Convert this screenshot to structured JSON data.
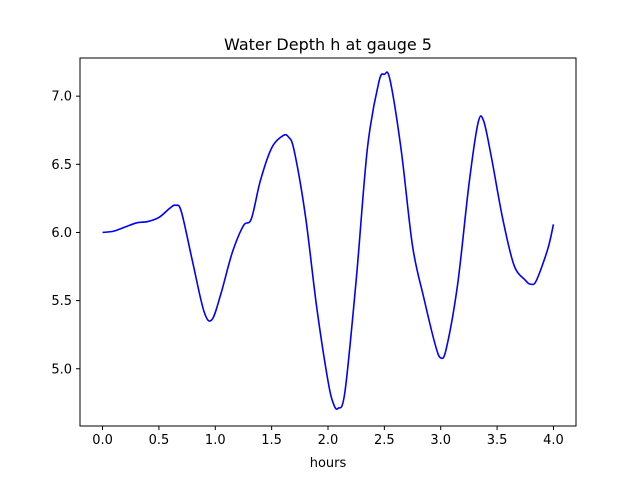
{
  "chart_data": {
    "type": "line",
    "title": "Water Depth h at gauge 5",
    "xlabel": "hours",
    "ylabel": "",
    "xlim": [
      -0.2,
      4.2
    ],
    "ylim": [
      4.58,
      7.28
    ],
    "grid": false,
    "xticks": [
      0.0,
      0.5,
      1.0,
      1.5,
      2.0,
      2.5,
      3.0,
      3.5,
      4.0
    ],
    "xtick_labels": [
      "0.0",
      "0.5",
      "1.0",
      "1.5",
      "2.0",
      "2.5",
      "3.0",
      "3.5",
      "4.0"
    ],
    "yticks": [
      5.0,
      5.5,
      6.0,
      6.5,
      7.0
    ],
    "ytick_labels": [
      "5.0",
      "5.5",
      "6.0",
      "6.5",
      "7.0"
    ],
    "series": [
      {
        "color": "#0000ff",
        "x": [
          0.0,
          0.1,
          0.2,
          0.3,
          0.4,
          0.5,
          0.6,
          0.65,
          0.7,
          0.8,
          0.9,
          0.97,
          1.05,
          1.15,
          1.25,
          1.32,
          1.4,
          1.5,
          1.6,
          1.65,
          1.7,
          1.8,
          1.9,
          2.0,
          2.05,
          2.09,
          2.15,
          2.25,
          2.35,
          2.45,
          2.5,
          2.55,
          2.65,
          2.75,
          2.85,
          2.95,
          3.0,
          3.05,
          3.15,
          3.25,
          3.33,
          3.38,
          3.45,
          3.55,
          3.65,
          3.75,
          3.8,
          3.85,
          3.95,
          4.0
        ],
        "y": [
          6.0,
          6.01,
          6.04,
          6.07,
          6.08,
          6.11,
          6.18,
          6.2,
          6.15,
          5.78,
          5.42,
          5.36,
          5.55,
          5.85,
          6.05,
          6.1,
          6.38,
          6.62,
          6.71,
          6.7,
          6.6,
          6.12,
          5.45,
          4.91,
          4.74,
          4.71,
          4.83,
          5.65,
          6.62,
          7.1,
          7.16,
          7.12,
          6.6,
          5.9,
          5.52,
          5.18,
          5.08,
          5.15,
          5.62,
          6.35,
          6.8,
          6.82,
          6.55,
          6.1,
          5.76,
          5.65,
          5.62,
          5.65,
          5.88,
          6.06
        ]
      }
    ]
  }
}
